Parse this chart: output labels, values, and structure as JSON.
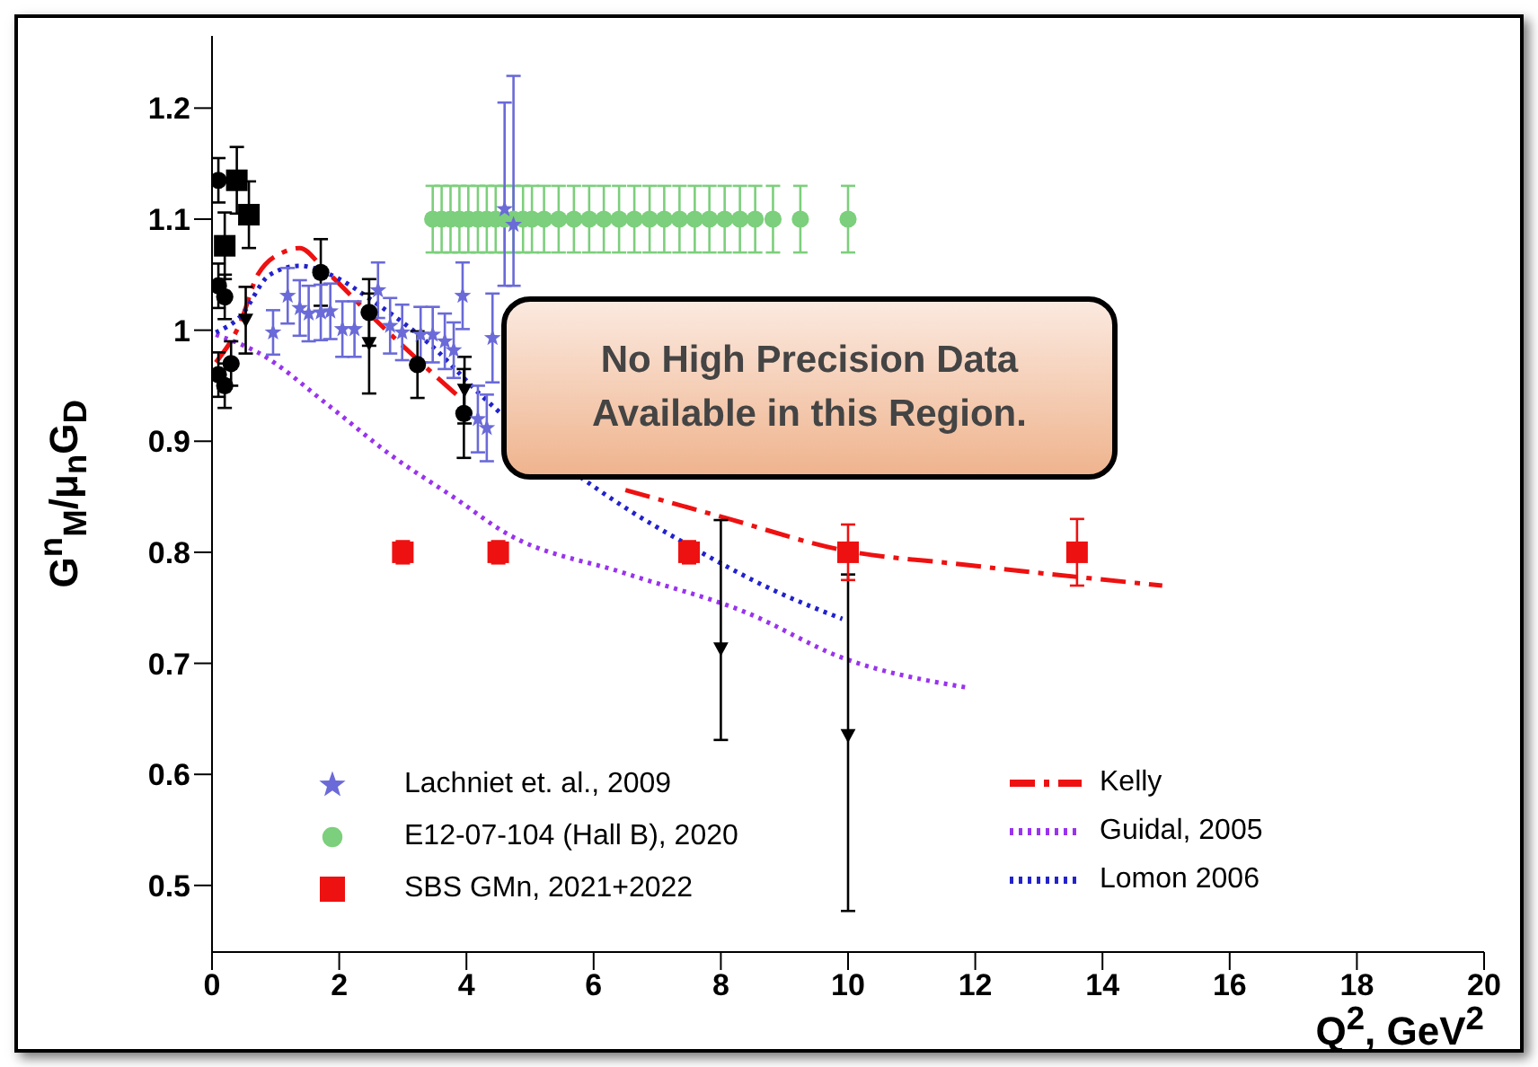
{
  "chart_data": {
    "type": "scatter",
    "xlabel": "Q$^{2}$, GeV$^{2}$",
    "ylabel": "G$^{n}$$_{M}$/μ$_{n}$G$_{D}$",
    "xlim": [
      0,
      20
    ],
    "ylim": [
      0.44,
      1.265
    ],
    "xticks": [
      0,
      2,
      4,
      6,
      8,
      10,
      12,
      14,
      16,
      18,
      20
    ],
    "yticks": [
      0.5,
      0.6,
      0.7,
      0.8,
      0.9,
      1,
      1.1,
      1.2
    ],
    "legend": "bottom",
    "annotations": [
      "No High Precision Data Available in this Region."
    ],
    "series": [
      {
        "name": "Lachniet et. al., 2009",
        "marker": "star",
        "color": "#6a6ad8",
        "x": [
          0.96,
          1.19,
          1.38,
          1.52,
          1.71,
          1.86,
          2.05,
          2.24,
          2.61,
          2.8,
          2.99,
          3.28,
          3.47,
          3.66,
          3.8,
          3.94,
          4.18,
          4.32,
          4.41,
          4.6,
          4.74
        ],
        "values": [
          0.998,
          1.031,
          1.02,
          1.015,
          1.016,
          1.017,
          1.001,
          1.001,
          1.036,
          1.004,
          0.998,
          0.996,
          0.996,
          0.99,
          0.982,
          1.031,
          0.92,
          0.912,
          0.993,
          1.109,
          1.095
        ],
        "errors": [
          0.02,
          0.025,
          0.025,
          0.025,
          0.025,
          0.025,
          0.025,
          0.025,
          0.025,
          0.025,
          0.025,
          0.025,
          0.025,
          0.025,
          0.025,
          0.03,
          0.03,
          0.03,
          0.04,
          [
            1.04,
            1.205
          ],
          [
            1.04,
            1.229
          ]
        ]
      },
      {
        "name": "E12-07-104 (Hall B), 2020",
        "marker": "circle",
        "color": "#7ccf7c",
        "x": [
          3.47,
          3.61,
          3.75,
          3.89,
          4.03,
          4.18,
          4.32,
          4.46,
          4.6,
          4.74,
          4.89,
          5.03,
          5.22,
          5.45,
          5.69,
          5.93,
          6.16,
          6.4,
          6.64,
          6.88,
          7.11,
          7.35,
          7.59,
          7.82,
          8.06,
          8.3,
          8.54,
          8.82,
          9.25,
          10.0
        ],
        "values": [
          1.1,
          1.1,
          1.1,
          1.1,
          1.1,
          1.1,
          1.1,
          1.1,
          1.1,
          1.1,
          1.1,
          1.1,
          1.1,
          1.1,
          1.1,
          1.1,
          1.1,
          1.1,
          1.1,
          1.1,
          1.1,
          1.1,
          1.1,
          1.1,
          1.1,
          1.1,
          1.1,
          1.1,
          1.1,
          1.1
        ],
        "errors": [
          0.03,
          0.03,
          0.03,
          0.03,
          0.03,
          0.03,
          0.03,
          0.03,
          0.03,
          0.03,
          0.03,
          0.03,
          0.03,
          0.03,
          0.03,
          0.03,
          0.03,
          0.03,
          0.03,
          0.03,
          0.03,
          0.03,
          0.03,
          0.03,
          0.03,
          0.03,
          0.03,
          0.03,
          0.03,
          0.03
        ]
      },
      {
        "name": "SBS GMn, 2021+2022",
        "marker": "square",
        "color": "#ee1111",
        "x": [
          3.0,
          4.5,
          7.5,
          10.0,
          13.6
        ],
        "values": [
          0.8,
          0.8,
          0.8,
          0.8,
          0.8
        ],
        "errors": [
          0.01,
          0.01,
          0.01,
          0.025,
          0.03
        ]
      },
      {
        "marker": "circle",
        "color": "#000000",
        "x": [
          0.1,
          0.1,
          0.2,
          0.1,
          0.2,
          0.3,
          1.71,
          2.47,
          3.23,
          3.96
        ],
        "values": [
          1.135,
          1.04,
          1.03,
          0.96,
          0.95,
          0.97,
          1.052,
          1.016,
          0.969,
          0.925
        ],
        "errors": [
          0.02,
          0.02,
          0.02,
          0.02,
          0.02,
          0.02,
          0.03,
          0.03,
          0.03,
          0.04
        ]
      },
      {
        "marker": "triangle",
        "color": "#000000",
        "x": [
          0.53,
          2.47,
          3.97,
          8.0,
          10.0
        ],
        "values": [
          1.009,
          0.988,
          0.946,
          0.713,
          0.635
        ],
        "errors": [
          0.03,
          0.045,
          0.03,
          [
            0.631,
            0.829
          ],
          [
            0.477,
            0.78
          ]
        ]
      },
      {
        "marker": "square",
        "color": "#000000",
        "x": [
          0.2,
          0.39,
          0.58
        ],
        "values": [
          1.076,
          1.135,
          1.104
        ],
        "errors": [
          0.03,
          0.03,
          0.03
        ]
      },
      {
        "name": "Kelly",
        "type": "line",
        "line_style": "dashed",
        "color": "#ee1111",
        "x": [
          0.06,
          0.44,
          0.72,
          1.15,
          1.38,
          1.76,
          2.52,
          3.28,
          3.94,
          5.0,
          6.5,
          8.01,
          9.91,
          11.8,
          14.94
        ],
        "values": [
          0.971,
          1.006,
          1.05,
          1.071,
          1.074,
          1.055,
          1.012,
          0.971,
          0.937,
          null,
          0.856,
          0.832,
          0.802,
          0.789,
          0.77
        ]
      },
      {
        "name": "Guidal, 2005",
        "type": "line",
        "line_style": "dotted",
        "color": "#9933ee",
        "x": [
          0.06,
          0.72,
          1.86,
          2.8,
          3.84,
          4.6,
          6.5,
          8.39,
          9.91,
          11.89
        ],
        "values": [
          0.996,
          0.98,
          0.931,
          0.888,
          0.848,
          0.818,
          0.781,
          0.746,
          0.705,
          0.678
        ]
      },
      {
        "name": "Lomon 2006",
        "type": "line",
        "line_style": "dotted",
        "color": "#2222cc",
        "x": [
          0.06,
          0.44,
          0.91,
          1.38,
          1.86,
          2.61,
          3.47,
          4.22,
          6.5,
          7.44,
          8.86,
          9.91
        ],
        "values": [
          0.998,
          1.012,
          1.05,
          1.058,
          1.05,
          1.023,
          0.985,
          0.942,
          0.84,
          0.808,
          0.765,
          0.74
        ]
      }
    ]
  }
}
